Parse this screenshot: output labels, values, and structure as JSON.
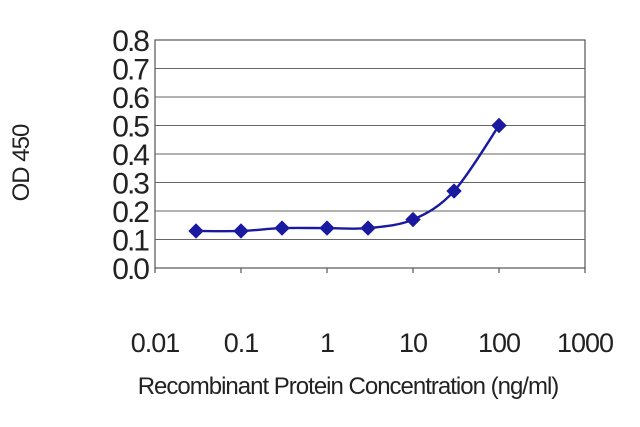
{
  "chart_data": {
    "type": "line",
    "xlabel": "Recombinant Protein Concentration (ng/ml)",
    "ylabel": "OD 450",
    "x_scale": "log",
    "xlim": [
      0.01,
      1000
    ],
    "ylim": [
      0.0,
      0.8
    ],
    "x_ticks": [
      "0.01",
      "0.1",
      "1",
      "10",
      "100",
      "1000"
    ],
    "y_ticks": [
      "0.0",
      "0.1",
      "0.2",
      "0.3",
      "0.4",
      "0.5",
      "0.6",
      "0.7",
      "0.8"
    ],
    "grid": "horizontal",
    "legend": "none",
    "series": [
      {
        "x": [
          0.03,
          0.1,
          0.3,
          1,
          3,
          10,
          30,
          100
        ],
        "y": [
          0.13,
          0.13,
          0.14,
          0.14,
          0.14,
          0.17,
          0.27,
          0.5
        ],
        "color": "#1a1aa0",
        "marker": "diamond"
      }
    ]
  }
}
